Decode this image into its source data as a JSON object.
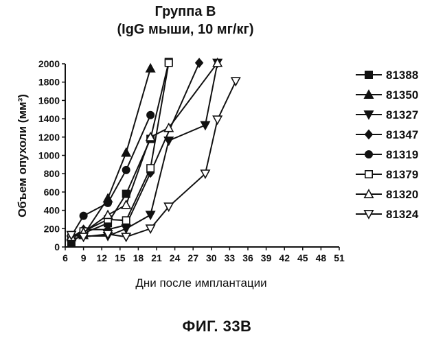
{
  "figure_caption": "ФИГ. 33В",
  "chart_data": {
    "type": "line",
    "title_line1": "Группа В",
    "title_line2": "(IgG мыши, 10 мг/кг)",
    "xlabel": "Дни после имплантации",
    "ylabel": "Объем опухоли (мм³)",
    "xlim": [
      6,
      51
    ],
    "ylim": [
      0,
      2000
    ],
    "xticks": [
      6,
      9,
      12,
      15,
      18,
      21,
      24,
      27,
      30,
      33,
      36,
      39,
      42,
      45,
      48,
      51
    ],
    "yticks": [
      0,
      200,
      400,
      600,
      800,
      1000,
      1200,
      1400,
      1600,
      1800,
      2000
    ],
    "grid": false,
    "legend_position": "right",
    "series": [
      {
        "name": "81388",
        "marker": "square-filled",
        "x": [
          7,
          9,
          13,
          16,
          20,
          23
        ],
        "y": [
          50,
          150,
          260,
          580,
          1180,
          2020
        ]
      },
      {
        "name": "81350",
        "marker": "triangle-up-filled",
        "x": [
          7,
          9,
          13,
          16,
          20
        ],
        "y": [
          120,
          130,
          530,
          1030,
          1950
        ]
      },
      {
        "name": "81327",
        "marker": "triangle-down-filled",
        "x": [
          7,
          9,
          13,
          16,
          20,
          23,
          29,
          31
        ],
        "y": [
          80,
          120,
          120,
          200,
          350,
          1160,
          1330,
          2010
        ]
      },
      {
        "name": "81347",
        "marker": "diamond-filled",
        "x": [
          7,
          9,
          13,
          16,
          20,
          28
        ],
        "y": [
          100,
          190,
          190,
          240,
          810,
          2010
        ]
      },
      {
        "name": "81319",
        "marker": "circle-filled",
        "x": [
          7,
          9,
          13,
          16,
          20
        ],
        "y": [
          120,
          340,
          480,
          840,
          1440
        ]
      },
      {
        "name": "81379",
        "marker": "square-open",
        "x": [
          7,
          9,
          13,
          16,
          20,
          23
        ],
        "y": [
          100,
          170,
          300,
          290,
          860,
          2010
        ]
      },
      {
        "name": "81320",
        "marker": "triangle-up-open",
        "x": [
          7,
          9,
          13,
          16,
          20,
          23,
          31
        ],
        "y": [
          110,
          160,
          350,
          460,
          1200,
          1300,
          2010
        ]
      },
      {
        "name": "81324",
        "marker": "triangle-down-open",
        "x": [
          7,
          9,
          13,
          16,
          20,
          23,
          29,
          31,
          34
        ],
        "y": [
          130,
          110,
          140,
          110,
          200,
          440,
          800,
          1390,
          1810
        ]
      }
    ]
  }
}
